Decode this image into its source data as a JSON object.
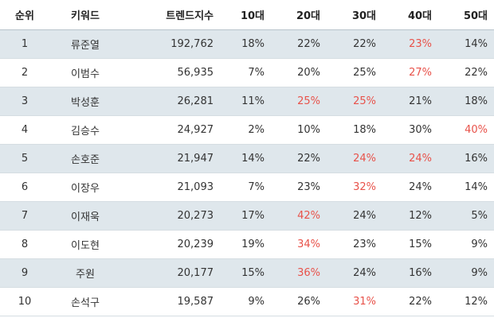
{
  "highlight_color": "#e8524a",
  "headers": {
    "rank": "순위",
    "keyword": "키워드",
    "index": "트렌드지수",
    "age10": "10대",
    "age20": "20대",
    "age30": "30대",
    "age40": "40대",
    "age50": "50대"
  },
  "rows": [
    {
      "rank": "1",
      "keyword": "류준열",
      "index": "192,762",
      "age10": "18%",
      "age20": "22%",
      "age30": "22%",
      "age40": "23%",
      "age50": "14%",
      "highlight": [
        "age40"
      ]
    },
    {
      "rank": "2",
      "keyword": "이범수",
      "index": "56,935",
      "age10": "7%",
      "age20": "20%",
      "age30": "25%",
      "age40": "27%",
      "age50": "22%",
      "highlight": [
        "age40"
      ]
    },
    {
      "rank": "3",
      "keyword": "박성훈",
      "index": "26,281",
      "age10": "11%",
      "age20": "25%",
      "age30": "25%",
      "age40": "21%",
      "age50": "18%",
      "highlight": [
        "age20",
        "age30"
      ]
    },
    {
      "rank": "4",
      "keyword": "김승수",
      "index": "24,927",
      "age10": "2%",
      "age20": "10%",
      "age30": "18%",
      "age40": "30%",
      "age50": "40%",
      "highlight": [
        "age50"
      ]
    },
    {
      "rank": "5",
      "keyword": "손호준",
      "index": "21,947",
      "age10": "14%",
      "age20": "22%",
      "age30": "24%",
      "age40": "24%",
      "age50": "16%",
      "highlight": [
        "age30",
        "age40"
      ]
    },
    {
      "rank": "6",
      "keyword": "이장우",
      "index": "21,093",
      "age10": "7%",
      "age20": "23%",
      "age30": "32%",
      "age40": "24%",
      "age50": "14%",
      "highlight": [
        "age30"
      ]
    },
    {
      "rank": "7",
      "keyword": "이재욱",
      "index": "20,273",
      "age10": "17%",
      "age20": "42%",
      "age30": "24%",
      "age40": "12%",
      "age50": "5%",
      "highlight": [
        "age20"
      ]
    },
    {
      "rank": "8",
      "keyword": "이도현",
      "index": "20,239",
      "age10": "19%",
      "age20": "34%",
      "age30": "23%",
      "age40": "15%",
      "age50": "9%",
      "highlight": [
        "age20"
      ]
    },
    {
      "rank": "9",
      "keyword": "주원",
      "index": "20,177",
      "age10": "15%",
      "age20": "36%",
      "age30": "24%",
      "age40": "16%",
      "age50": "9%",
      "highlight": [
        "age20"
      ]
    },
    {
      "rank": "10",
      "keyword": "손석구",
      "index": "19,587",
      "age10": "9%",
      "age20": "26%",
      "age30": "31%",
      "age40": "22%",
      "age50": "12%",
      "highlight": [
        "age30"
      ]
    }
  ]
}
